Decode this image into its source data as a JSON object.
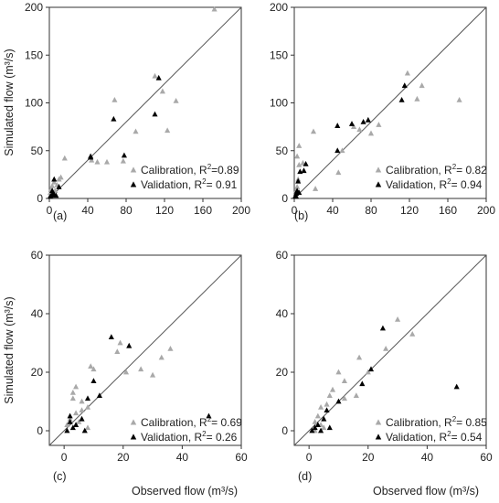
{
  "colors": {
    "calibration": "#a9a9a9",
    "validation": "#000000",
    "axis": "#333333"
  },
  "chart_data": [
    {
      "type": "scatter",
      "panel_label": "(a)",
      "xlabel": "",
      "ylabel": "Simulated flow (m³/s)",
      "xlim": [
        0,
        200
      ],
      "ylim": [
        0,
        200
      ],
      "xticks": [
        "0",
        "40",
        "80",
        "120",
        "160",
        "200"
      ],
      "yticks": [
        "0",
        "50",
        "100",
        "150",
        "200"
      ],
      "one_to_one_line": true,
      "legend_position": "lower-right",
      "series": [
        {
          "name": "Calibration, R² = 0.89",
          "legend_parts": [
            "Calibration, R",
            "2",
            "=0.89"
          ],
          "marker": "triangle",
          "color": "#a9a9a9",
          "points": [
            [
              172,
              198
            ],
            [
              110,
              128
            ],
            [
              118,
              112
            ],
            [
              132,
              102
            ],
            [
              68,
              103
            ],
            [
              123,
              71
            ],
            [
              90,
              70
            ],
            [
              77,
              39
            ],
            [
              60,
              38
            ],
            [
              50,
              38
            ],
            [
              44,
              40
            ],
            [
              16,
              42
            ],
            [
              12,
              22
            ],
            [
              10,
              20
            ],
            [
              5,
              17
            ],
            [
              2,
              10
            ],
            [
              4,
              5
            ],
            [
              6,
              8
            ],
            [
              3,
              13
            ],
            [
              8,
              14
            ],
            [
              1,
              3
            ],
            [
              1,
              6
            ]
          ]
        },
        {
          "name": "Validation, R² = 0.91",
          "legend_parts": [
            "Validation, R",
            "2",
            "= 0.91"
          ],
          "marker": "triangle",
          "color": "#000000",
          "points": [
            [
              114,
              126
            ],
            [
              110,
              88
            ],
            [
              67,
              83
            ],
            [
              78,
              45
            ],
            [
              43,
              44
            ],
            [
              43,
              43
            ],
            [
              5,
              20
            ],
            [
              10,
              12
            ],
            [
              3,
              8
            ],
            [
              4,
              5
            ],
            [
              2,
              3
            ],
            [
              5,
              4
            ],
            [
              1,
              2
            ],
            [
              7,
              3
            ]
          ]
        }
      ]
    },
    {
      "type": "scatter",
      "panel_label": "(b)",
      "xlabel": "",
      "ylabel": "",
      "xlim": [
        0,
        200
      ],
      "ylim": [
        0,
        200
      ],
      "xticks": [
        "0",
        "40",
        "80",
        "120",
        "160",
        "200"
      ],
      "yticks": [
        "0",
        "50",
        "100",
        "150",
        "200"
      ],
      "one_to_one_line": true,
      "legend_position": "lower-right",
      "series": [
        {
          "name": "Calibration, R² = 0.82",
          "legend_parts": [
            "Calibration, R",
            "2",
            "= 0.82"
          ],
          "marker": "triangle",
          "color": "#a9a9a9",
          "points": [
            [
              118,
              131
            ],
            [
              133,
              118
            ],
            [
              172,
              103
            ],
            [
              128,
              104
            ],
            [
              88,
              77
            ],
            [
              80,
              68
            ],
            [
              62,
              75
            ],
            [
              68,
              72
            ],
            [
              50,
              50
            ],
            [
              46,
              27
            ],
            [
              20,
              70
            ],
            [
              22,
              10
            ],
            [
              5,
              55
            ],
            [
              3,
              44
            ],
            [
              5,
              35
            ],
            [
              9,
              37
            ],
            [
              4,
              20
            ],
            [
              2,
              8
            ],
            [
              1,
              3
            ],
            [
              3,
              12
            ]
          ]
        },
        {
          "name": "Validation, R² = 0.94",
          "legend_parts": [
            "Validation, R",
            "2",
            "= 0.94"
          ],
          "marker": "triangle",
          "color": "#000000",
          "points": [
            [
              115,
              118
            ],
            [
              112,
              103
            ],
            [
              77,
              82
            ],
            [
              72,
              80
            ],
            [
              60,
              78
            ],
            [
              45,
              76
            ],
            [
              45,
              50
            ],
            [
              10,
              29
            ],
            [
              6,
              28
            ],
            [
              12,
              36
            ],
            [
              4,
              18
            ],
            [
              3,
              8
            ],
            [
              2,
              5
            ],
            [
              5,
              6
            ],
            [
              1,
              2
            ],
            [
              2,
              2
            ]
          ]
        }
      ]
    },
    {
      "type": "scatter",
      "panel_label": "(c)",
      "xlabel": "Observed flow (m³/s)",
      "ylabel": "Simulated flow (m³/s)",
      "xlim": [
        -5,
        60
      ],
      "ylim": [
        -5,
        60
      ],
      "xticks": [
        "0",
        "20",
        "40",
        "60"
      ],
      "yticks": [
        "0",
        "20",
        "40",
        "60"
      ],
      "one_to_one_line": true,
      "legend_position": "lower-right",
      "series": [
        {
          "name": "Calibration, R² = 0.69",
          "legend_parts": [
            "Calibration, R",
            "2",
            "= 0.69"
          ],
          "marker": "triangle",
          "color": "#a9a9a9",
          "points": [
            [
              36,
              28
            ],
            [
              33,
              25
            ],
            [
              26,
              21
            ],
            [
              30,
              19
            ],
            [
              21,
              20
            ],
            [
              18,
              27
            ],
            [
              19,
              30
            ],
            [
              9,
              22
            ],
            [
              10,
              21
            ],
            [
              4,
              15
            ],
            [
              3,
              13
            ],
            [
              6,
              10
            ],
            [
              8,
              8
            ],
            [
              4,
              6
            ],
            [
              6,
              7
            ],
            [
              1,
              2
            ],
            [
              2,
              4
            ],
            [
              5,
              3
            ],
            [
              8,
              1
            ],
            [
              3,
              11
            ]
          ]
        },
        {
          "name": "Validation, R² = 0.26",
          "legend_parts": [
            "Validation, R",
            "2",
            "= 0.26"
          ],
          "marker": "triangle",
          "color": "#000000",
          "points": [
            [
              16,
              32
            ],
            [
              22,
              29
            ],
            [
              10,
              17
            ],
            [
              12,
              12
            ],
            [
              8,
              11
            ],
            [
              2,
              5
            ],
            [
              2,
              3
            ],
            [
              3,
              1
            ],
            [
              1,
              0
            ],
            [
              4,
              2
            ],
            [
              6,
              4
            ],
            [
              7,
              0
            ],
            [
              49,
              5
            ]
          ]
        }
      ]
    },
    {
      "type": "scatter",
      "panel_label": "(d)",
      "xlabel": "Observed flow (m³/s)",
      "ylabel": "",
      "xlim": [
        -5,
        60
      ],
      "ylim": [
        -5,
        60
      ],
      "xticks": [
        "0",
        "20",
        "40",
        "60"
      ],
      "yticks": [
        "0",
        "20",
        "40",
        "60"
      ],
      "one_to_one_line": true,
      "legend_position": "lower-right",
      "series": [
        {
          "name": "Calibration, R² = 0.85",
          "legend_parts": [
            "Calibration, R",
            "2",
            "= 0.85"
          ],
          "marker": "triangle",
          "color": "#a9a9a9",
          "points": [
            [
              30,
              38
            ],
            [
              35,
              33
            ],
            [
              26,
              28
            ],
            [
              20,
              20
            ],
            [
              17,
              25
            ],
            [
              10,
              20
            ],
            [
              12,
              17
            ],
            [
              16,
              12
            ],
            [
              12,
              11
            ],
            [
              7,
              12
            ],
            [
              6,
              9
            ],
            [
              4,
              8
            ],
            [
              3,
              5
            ],
            [
              2,
              3
            ],
            [
              8,
              14
            ],
            [
              4,
              2
            ],
            [
              5,
              1
            ],
            [
              2,
              0
            ]
          ]
        },
        {
          "name": "Validation, R² = 0.54",
          "legend_parts": [
            "Validation, R",
            "2",
            "= 0.54"
          ],
          "marker": "triangle",
          "color": "#000000",
          "points": [
            [
              25,
              35
            ],
            [
              21,
              21
            ],
            [
              18,
              16
            ],
            [
              10,
              10
            ],
            [
              6,
              7
            ],
            [
              5,
              4
            ],
            [
              3,
              2
            ],
            [
              1,
              0
            ],
            [
              2,
              1
            ],
            [
              4,
              0
            ],
            [
              7,
              1
            ],
            [
              50,
              15
            ]
          ]
        }
      ]
    }
  ]
}
